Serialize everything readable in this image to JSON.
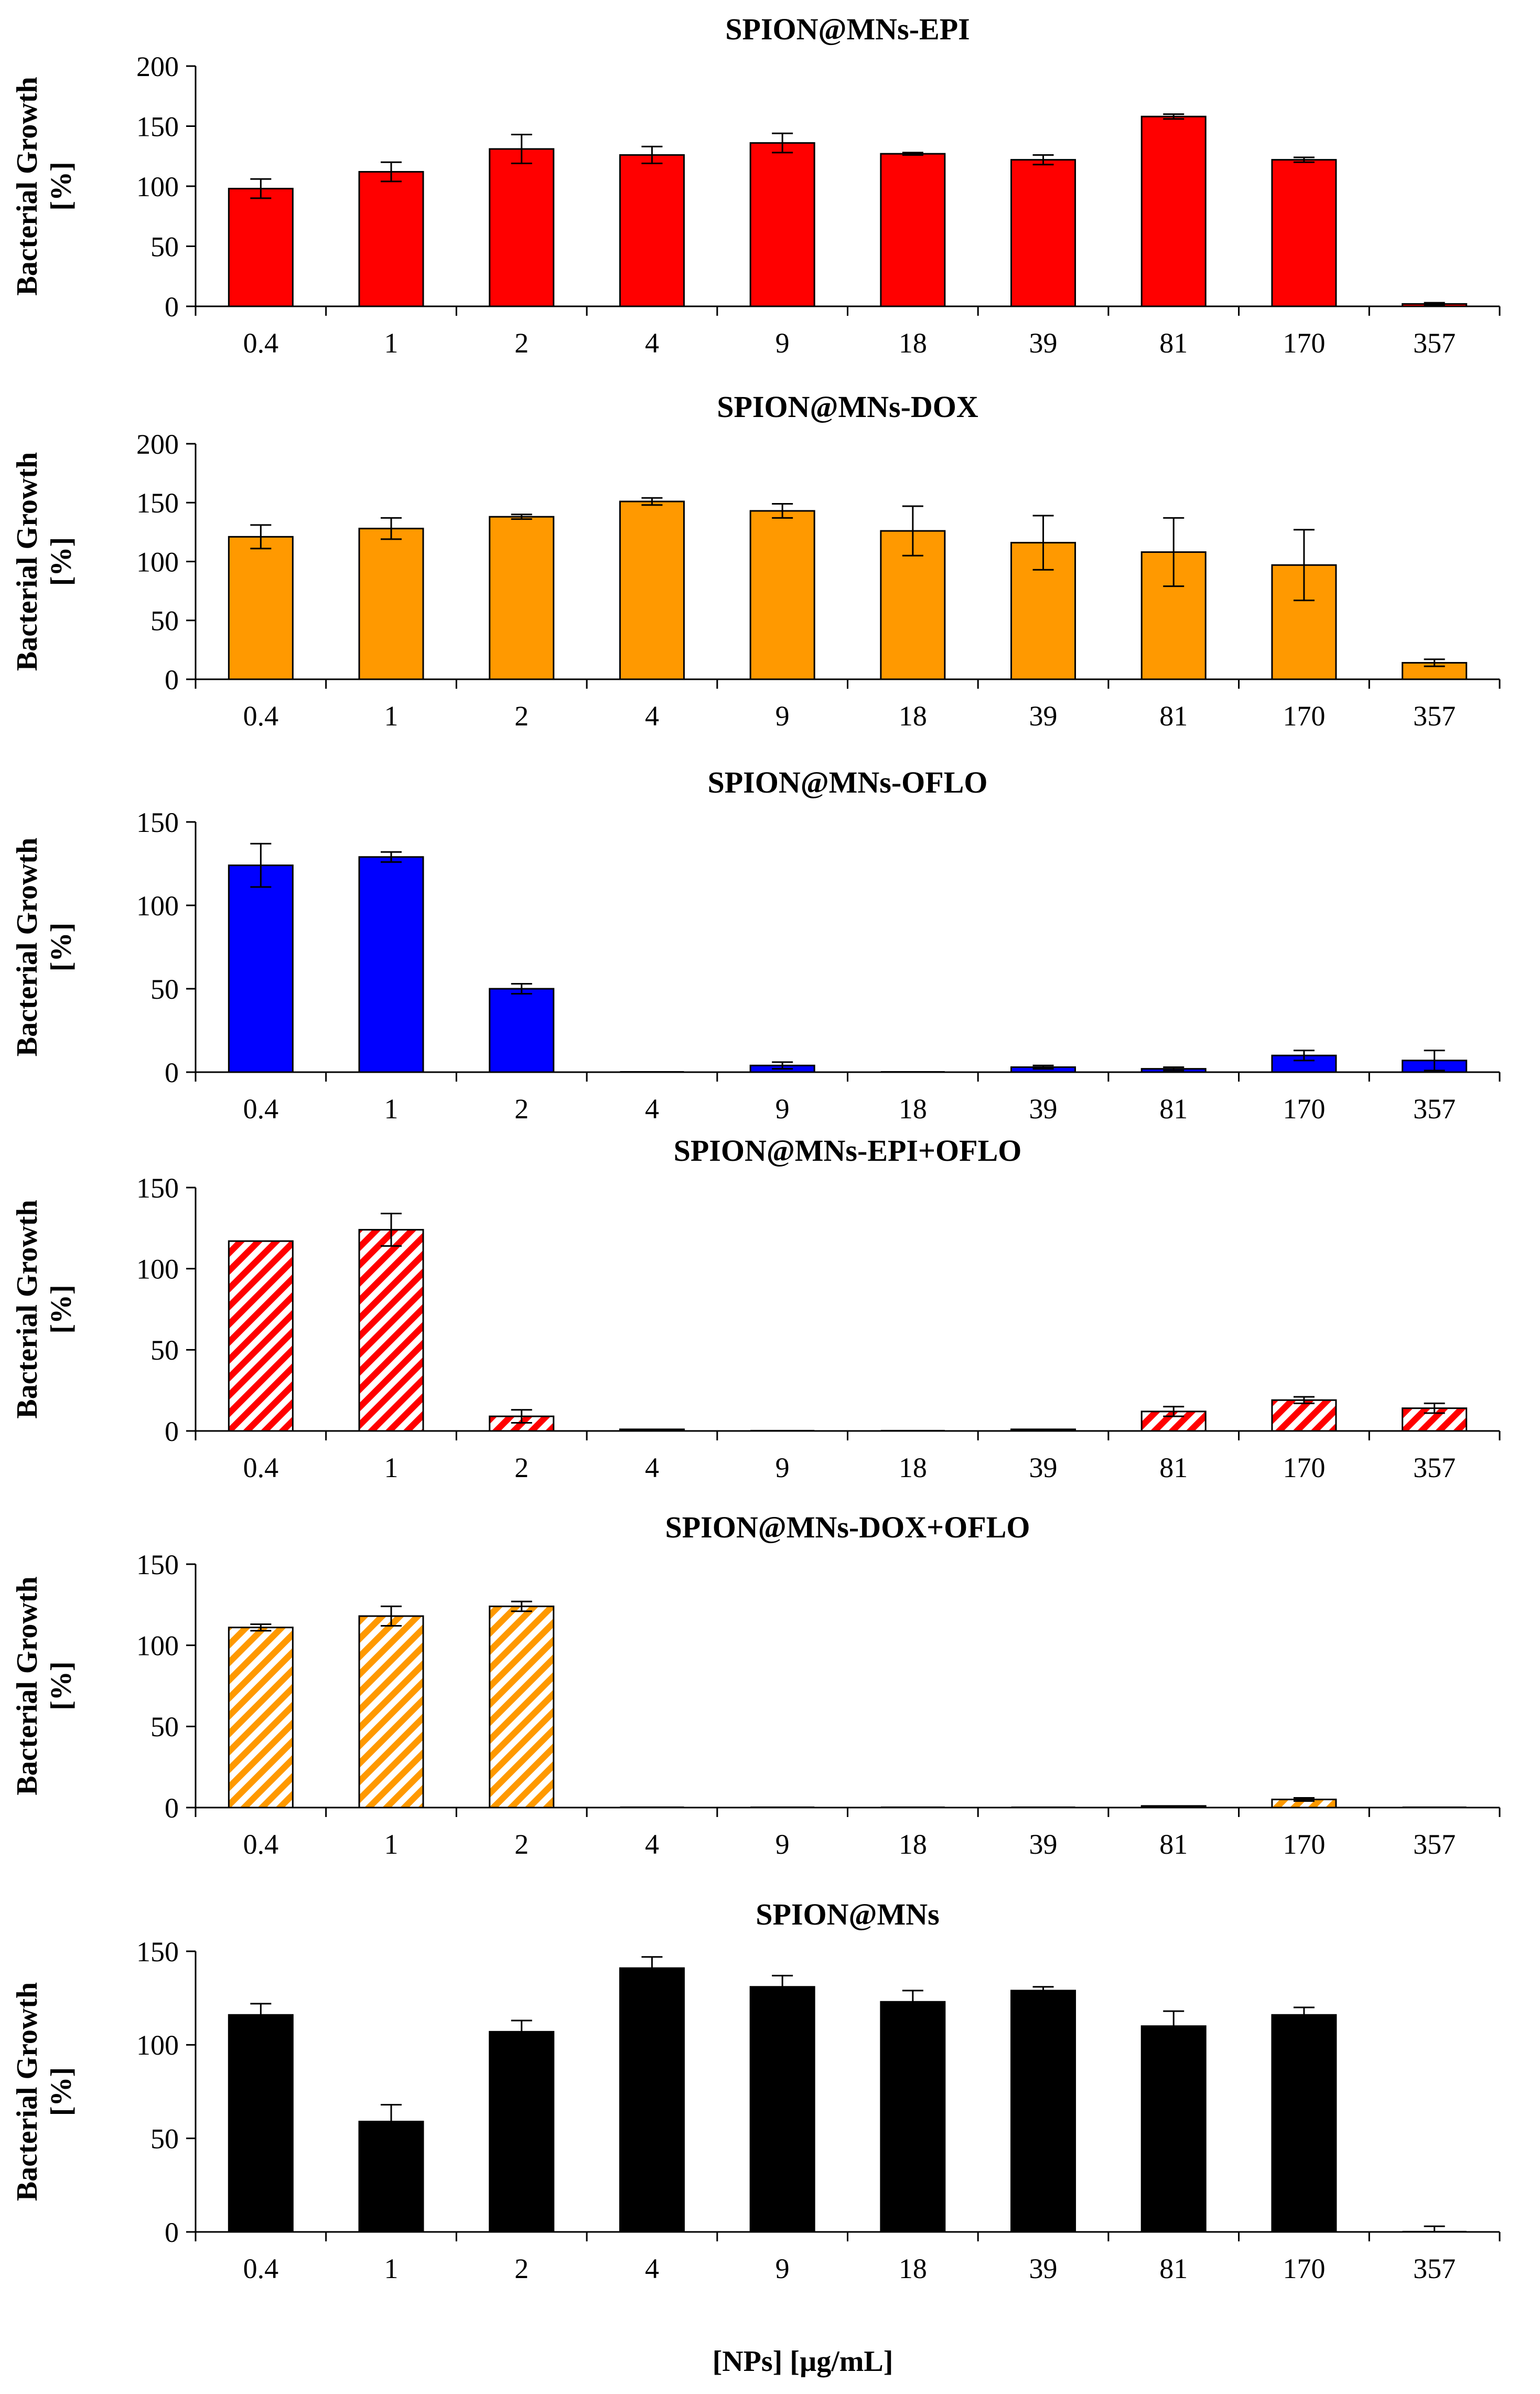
{
  "chart_data": [
    {
      "type": "bar",
      "title": "SPION@MNs-EPI",
      "ylabel_line1": "Bacterial Growth",
      "ylabel_line2": "[%]",
      "ylim": [
        0,
        200
      ],
      "yticks": [
        0,
        50,
        100,
        150,
        200
      ],
      "fill": "#ff0000",
      "pattern": "solid",
      "categories": [
        "0.4",
        "1",
        "2",
        "4",
        "9",
        "18",
        "39",
        "81",
        "170",
        "357"
      ],
      "values": [
        98,
        112,
        131,
        126,
        136,
        127,
        122,
        158,
        122,
        2
      ],
      "errors": [
        8,
        8,
        12,
        7,
        8,
        1,
        4,
        2,
        2,
        1
      ]
    },
    {
      "type": "bar",
      "title": "SPION@MNs-DOX",
      "ylabel_line1": "Bacterial Growth",
      "ylabel_line2": "[%]",
      "ylim": [
        0,
        200
      ],
      "yticks": [
        0,
        50,
        100,
        150,
        200
      ],
      "fill": "#ff9900",
      "pattern": "solid",
      "categories": [
        "0.4",
        "1",
        "2",
        "4",
        "9",
        "18",
        "39",
        "81",
        "170",
        "357"
      ],
      "values": [
        121,
        128,
        138,
        151,
        143,
        126,
        116,
        108,
        97,
        14
      ],
      "errors": [
        10,
        9,
        2,
        3,
        6,
        21,
        23,
        29,
        30,
        3
      ]
    },
    {
      "type": "bar",
      "title": "SPION@MNs-OFLO",
      "ylabel_line1": "Bacterial Growth",
      "ylabel_line2": "[%]",
      "ylim": [
        0,
        150
      ],
      "yticks": [
        0,
        50,
        100,
        150
      ],
      "fill": "#0000ff",
      "pattern": "solid",
      "categories": [
        "0.4",
        "1",
        "2",
        "4",
        "9",
        "18",
        "39",
        "81",
        "170",
        "357"
      ],
      "values": [
        124,
        129,
        50,
        0,
        4,
        0,
        3,
        2,
        10,
        7
      ],
      "errors": [
        13,
        3,
        3,
        0,
        2,
        0,
        1,
        1,
        3,
        6
      ]
    },
    {
      "type": "bar",
      "title": "SPION@MNs-EPI+OFLO",
      "ylabel_line1": "Bacterial Growth",
      "ylabel_line2": "[%]",
      "ylim": [
        0,
        150
      ],
      "yticks": [
        0,
        50,
        100,
        150
      ],
      "fill": "#ff0000",
      "pattern": "striped",
      "categories": [
        "0.4",
        "1",
        "2",
        "4",
        "9",
        "18",
        "39",
        "81",
        "170",
        "357"
      ],
      "values": [
        117,
        124,
        9,
        1,
        0,
        0,
        1,
        12,
        19,
        14
      ],
      "errors": [
        0,
        10,
        4,
        0,
        0,
        0,
        0,
        3,
        2,
        3
      ]
    },
    {
      "type": "bar",
      "title": "SPION@MNs-DOX+OFLO",
      "ylabel_line1": "Bacterial Growth",
      "ylabel_line2": "[%]",
      "ylim": [
        0,
        150
      ],
      "yticks": [
        0,
        50,
        100,
        150
      ],
      "fill": "#ff9900",
      "pattern": "striped",
      "categories": [
        "0.4",
        "1",
        "2",
        "4",
        "9",
        "18",
        "39",
        "81",
        "170",
        "357"
      ],
      "values": [
        111,
        118,
        124,
        0,
        0,
        0,
        0,
        1,
        5,
        0
      ],
      "errors": [
        2,
        6,
        3,
        0,
        0,
        0,
        0,
        0,
        1,
        0
      ]
    },
    {
      "type": "bar",
      "title": "SPION@MNs",
      "ylabel_line1": "Bacterial Growth",
      "ylabel_line2": "[%]",
      "ylim": [
        0,
        150
      ],
      "yticks": [
        0,
        50,
        100,
        150
      ],
      "fill": "#000000",
      "pattern": "solid",
      "categories": [
        "0.4",
        "1",
        "2",
        "4",
        "9",
        "18",
        "39",
        "81",
        "170",
        "357"
      ],
      "values": [
        116,
        59,
        107,
        141,
        131,
        123,
        129,
        110,
        116,
        0
      ],
      "errors": [
        6,
        9,
        6,
        6,
        6,
        6,
        2,
        8,
        4,
        3
      ]
    }
  ],
  "common_xlabel": "[NPs] [µg/mL]"
}
